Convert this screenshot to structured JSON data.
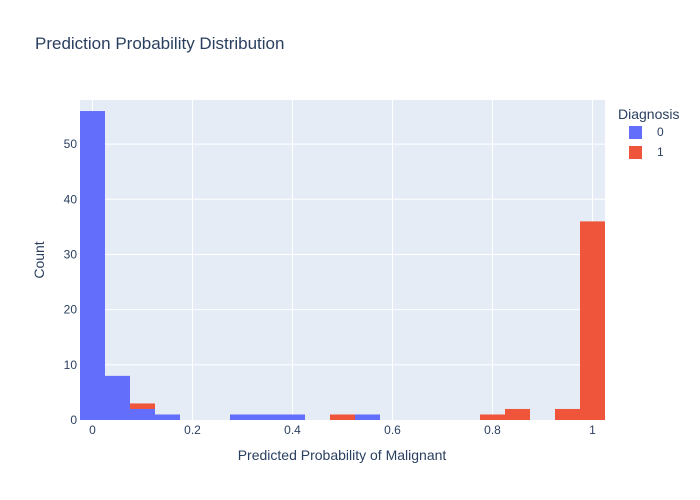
{
  "chart_data": {
    "type": "bar",
    "title": "Prediction Probability Distribution",
    "xlabel": "Predicted Probability of Malignant",
    "ylabel": "Count",
    "xlim": [
      0,
      1
    ],
    "ylim": [
      0,
      58
    ],
    "x_ticks": [
      "0",
      "0.2",
      "0.4",
      "0.6",
      "0.8",
      "1"
    ],
    "y_ticks": [
      "0",
      "10",
      "20",
      "30",
      "40",
      "50"
    ],
    "bin_width": 0.05,
    "legend": {
      "title": "Diagnosis",
      "placement": "top-right"
    },
    "grid": true,
    "series": [
      {
        "name": "0",
        "color": "#636efa",
        "bins": [
          {
            "x0": -0.025,
            "x1": 0.025,
            "value": 56
          },
          {
            "x0": 0.025,
            "x1": 0.075,
            "value": 8
          },
          {
            "x0": 0.075,
            "x1": 0.125,
            "value": 2
          },
          {
            "x0": 0.125,
            "x1": 0.175,
            "value": 1
          },
          {
            "x0": 0.275,
            "x1": 0.325,
            "value": 1
          },
          {
            "x0": 0.325,
            "x1": 0.375,
            "value": 1
          },
          {
            "x0": 0.375,
            "x1": 0.425,
            "value": 1
          },
          {
            "x0": 0.525,
            "x1": 0.575,
            "value": 1
          }
        ]
      },
      {
        "name": "1",
        "color": "#ef553b",
        "bins": [
          {
            "x0": 0.075,
            "x1": 0.125,
            "value": 3
          },
          {
            "x0": 0.475,
            "x1": 0.525,
            "value": 1
          },
          {
            "x0": 0.775,
            "x1": 0.825,
            "value": 1
          },
          {
            "x0": 0.825,
            "x1": 0.875,
            "value": 2
          },
          {
            "x0": 0.925,
            "x1": 0.975,
            "value": 2
          },
          {
            "x0": 0.975,
            "x1": 1.025,
            "value": 36
          }
        ]
      }
    ]
  }
}
